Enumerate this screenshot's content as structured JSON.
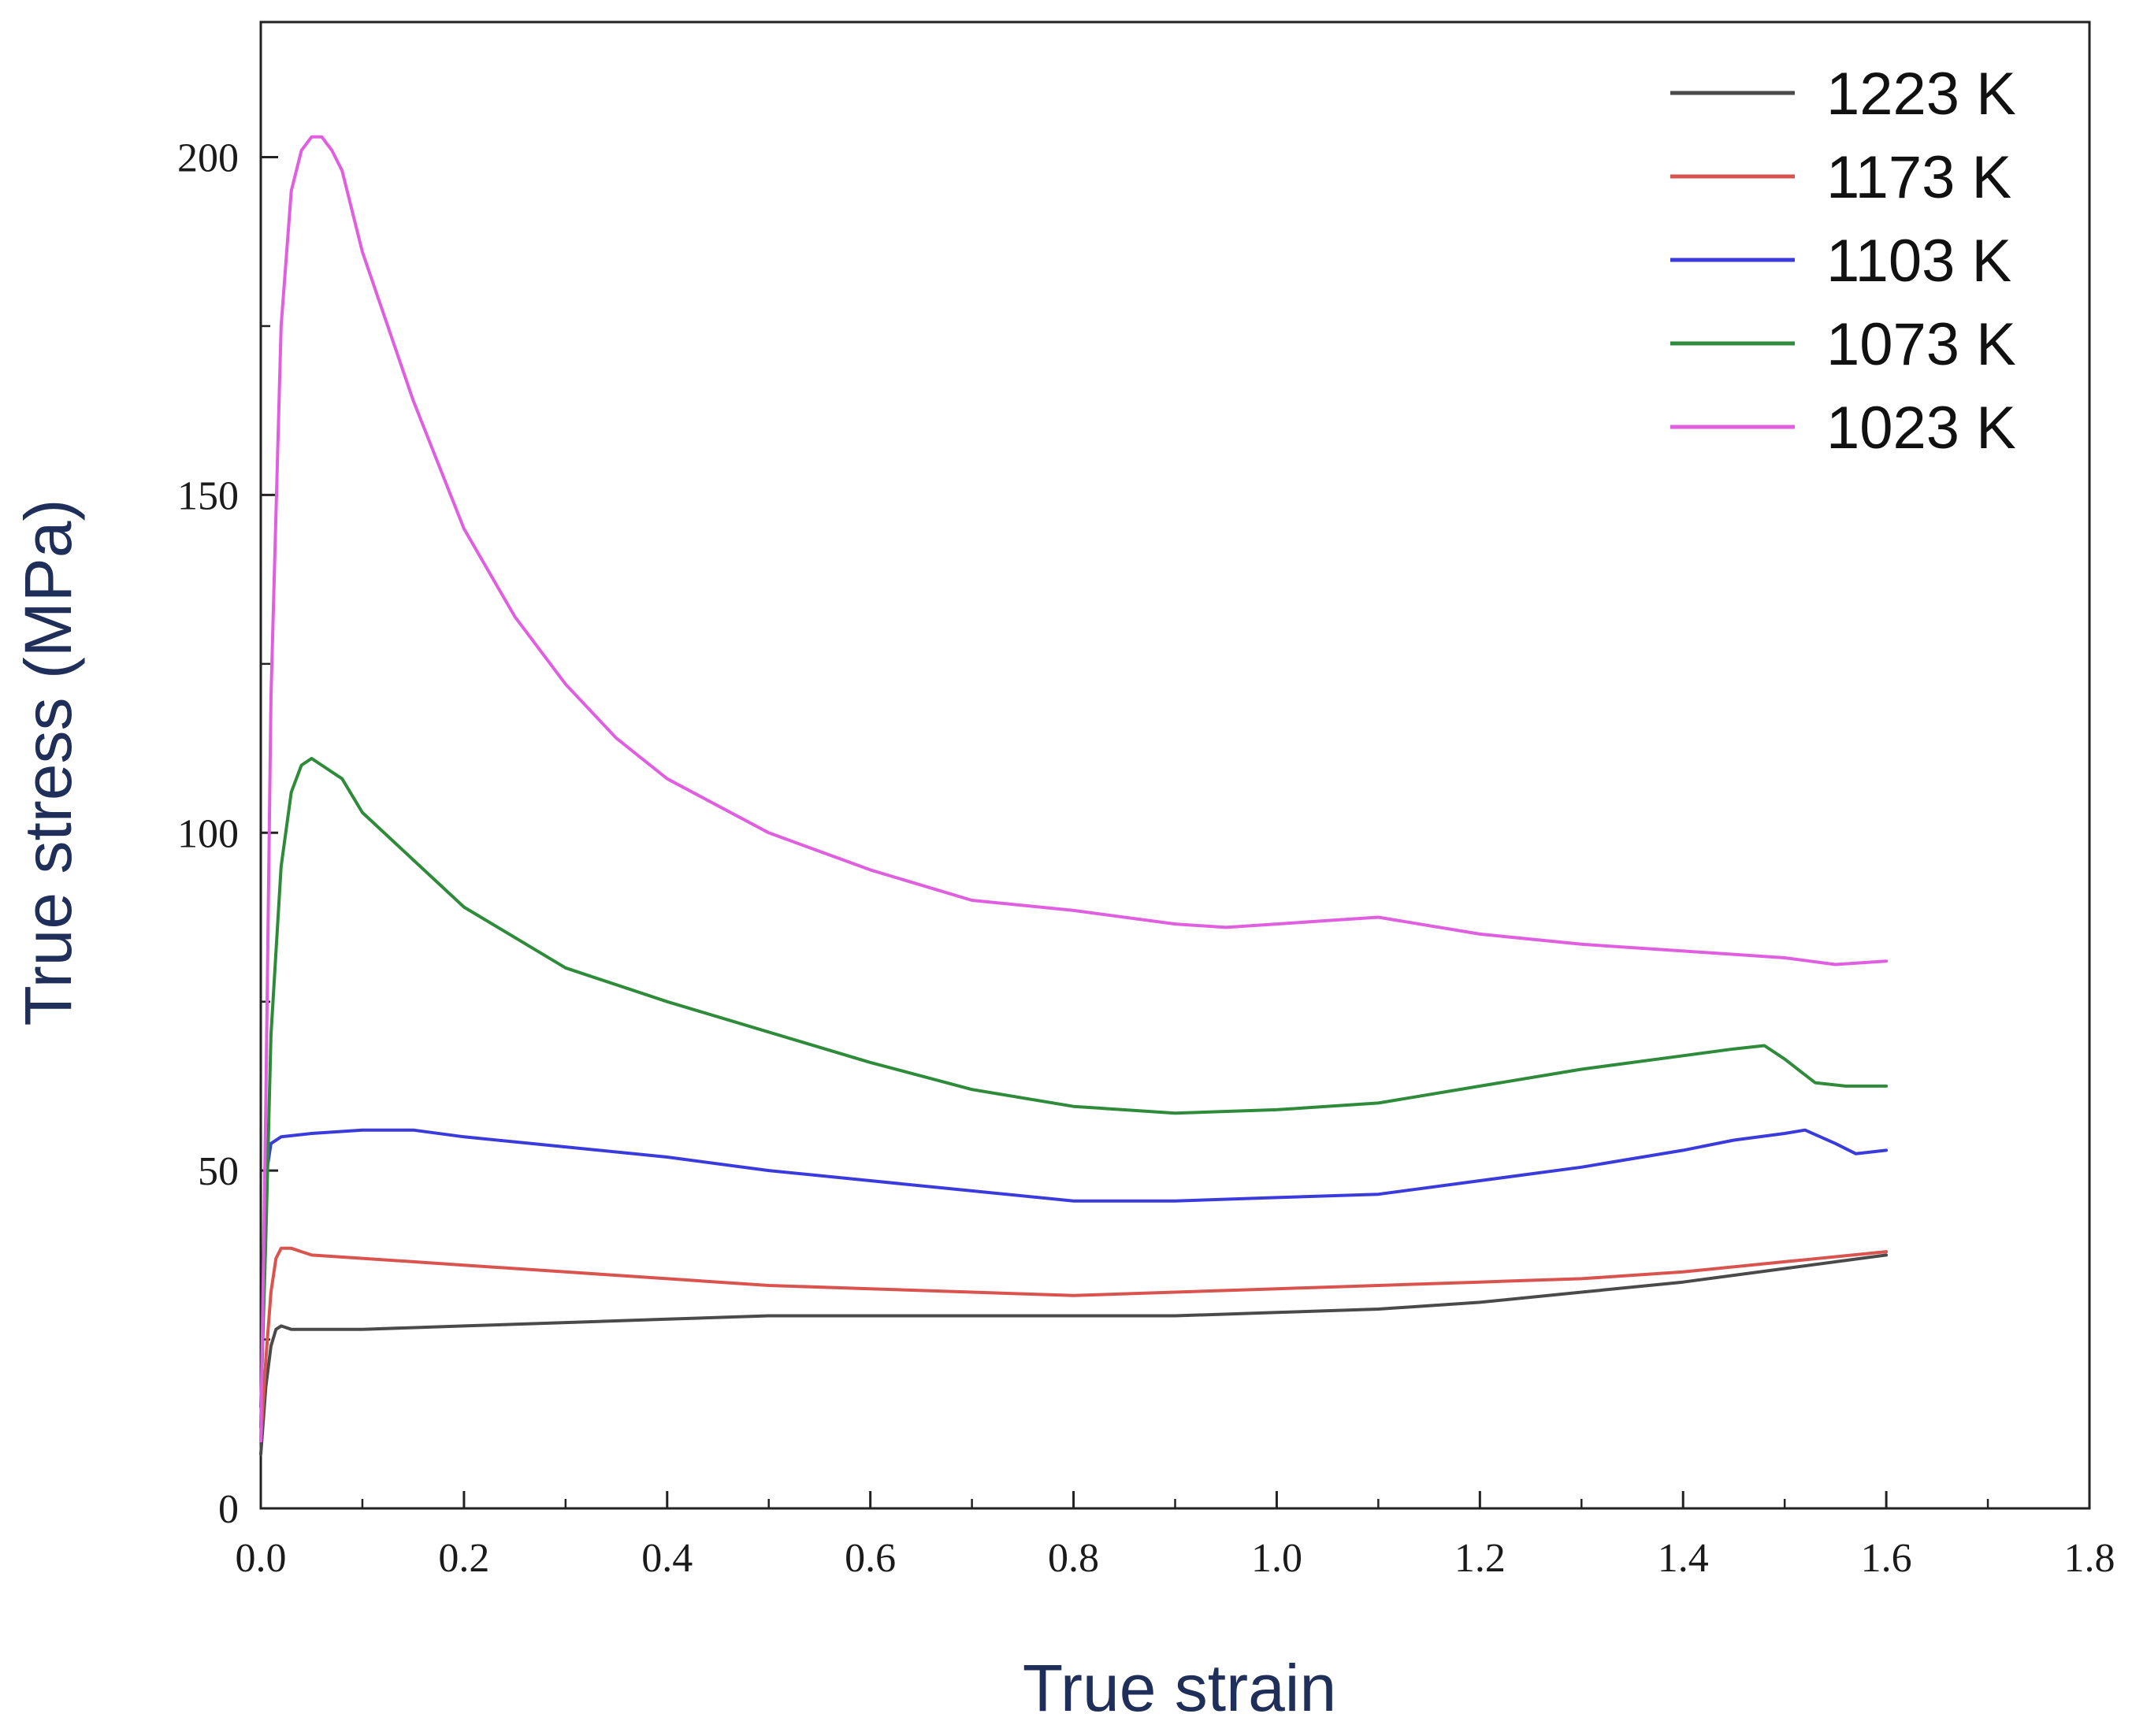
{
  "chart_data": {
    "type": "line",
    "title": "",
    "xlabel": "True strain",
    "ylabel": "True stress (MPa)",
    "xlim": [
      0,
      1.8
    ],
    "ylim": [
      0,
      220
    ],
    "x_ticks": [
      0.0,
      0.2,
      0.4,
      0.6,
      0.8,
      1.0,
      1.2,
      1.4,
      1.6,
      1.8
    ],
    "x_tick_labels": [
      "0.0",
      "0.2",
      "0.4",
      "0.6",
      "0.8",
      "1.0",
      "1.2",
      "1.4",
      "1.6",
      "1.8"
    ],
    "y_ticks": [
      0,
      50,
      100,
      150,
      200
    ],
    "y_tick_labels": [
      "0",
      "50",
      "100",
      "150",
      "200"
    ],
    "grid": false,
    "legend_position": "top-right",
    "series": [
      {
        "name": "1223 K",
        "color": "#4a4a4a",
        "x": [
          0.0,
          0.005,
          0.01,
          0.015,
          0.02,
          0.03,
          0.05,
          0.1,
          0.2,
          0.3,
          0.4,
          0.5,
          0.6,
          0.7,
          0.8,
          0.9,
          1.0,
          1.1,
          1.2,
          1.3,
          1.4,
          1.5,
          1.6
        ],
        "y": [
          8,
          18,
          24,
          26.5,
          27,
          26.5,
          26.5,
          26.5,
          27,
          27.5,
          28,
          28.5,
          28.5,
          28.5,
          28.5,
          28.5,
          29,
          29.5,
          30.5,
          32,
          33.5,
          35.5,
          37.5
        ]
      },
      {
        "name": "1173 K",
        "color": "#d9534f",
        "x": [
          0.0,
          0.005,
          0.01,
          0.015,
          0.02,
          0.03,
          0.05,
          0.1,
          0.2,
          0.3,
          0.4,
          0.5,
          0.6,
          0.7,
          0.8,
          0.9,
          1.0,
          1.1,
          1.2,
          1.3,
          1.4,
          1.5,
          1.6
        ],
        "y": [
          10,
          22,
          32,
          37,
          38.5,
          38.5,
          37.5,
          37,
          36,
          35,
          34,
          33,
          32.5,
          32,
          31.5,
          32,
          32.5,
          33,
          33.5,
          34,
          35,
          36.5,
          38
        ]
      },
      {
        "name": "1103 K",
        "color": "#3b3bdd",
        "x": [
          0.0,
          0.003,
          0.006,
          0.01,
          0.02,
          0.05,
          0.1,
          0.15,
          0.2,
          0.3,
          0.4,
          0.5,
          0.6,
          0.7,
          0.8,
          0.9,
          1.0,
          1.1,
          1.2,
          1.3,
          1.4,
          1.45,
          1.5,
          1.52,
          1.55,
          1.57,
          1.6
        ],
        "y": [
          12,
          35,
          50,
          54,
          55,
          55.5,
          56,
          56,
          55,
          53.5,
          52,
          50,
          48.5,
          47,
          45.5,
          45.5,
          46,
          46.5,
          48.5,
          50.5,
          53,
          54.5,
          55.5,
          56,
          54,
          52.5,
          53
        ]
      },
      {
        "name": "1073 K",
        "color": "#2e8b3a",
        "x": [
          0.0,
          0.005,
          0.01,
          0.02,
          0.03,
          0.04,
          0.05,
          0.06,
          0.08,
          0.1,
          0.15,
          0.2,
          0.3,
          0.4,
          0.5,
          0.6,
          0.7,
          0.8,
          0.9,
          1.0,
          1.1,
          1.2,
          1.3,
          1.4,
          1.45,
          1.48,
          1.5,
          1.53,
          1.56,
          1.6
        ],
        "y": [
          15,
          40,
          70,
          95,
          106,
          110,
          111,
          110,
          108,
          103,
          96,
          89,
          80,
          75,
          70.5,
          66,
          62,
          59.5,
          58.5,
          59,
          60,
          62.5,
          65,
          67,
          68,
          68.5,
          66.5,
          63,
          62.5,
          62.5
        ]
      },
      {
        "name": "1023 K",
        "color": "#e05ee0",
        "x": [
          0.0,
          0.005,
          0.01,
          0.02,
          0.03,
          0.04,
          0.05,
          0.06,
          0.07,
          0.08,
          0.1,
          0.15,
          0.2,
          0.25,
          0.3,
          0.35,
          0.4,
          0.5,
          0.6,
          0.7,
          0.8,
          0.9,
          0.95,
          1.0,
          1.05,
          1.1,
          1.2,
          1.3,
          1.4,
          1.5,
          1.55,
          1.6
        ],
        "y": [
          10,
          60,
          120,
          175,
          195,
          201,
          203,
          203,
          201,
          198,
          186,
          164,
          145,
          132,
          122,
          114,
          108,
          100,
          94.5,
          90,
          88.5,
          86.5,
          86,
          86.5,
          87,
          87.5,
          85,
          83.5,
          82.5,
          81.5,
          80.5,
          81
        ]
      }
    ]
  }
}
